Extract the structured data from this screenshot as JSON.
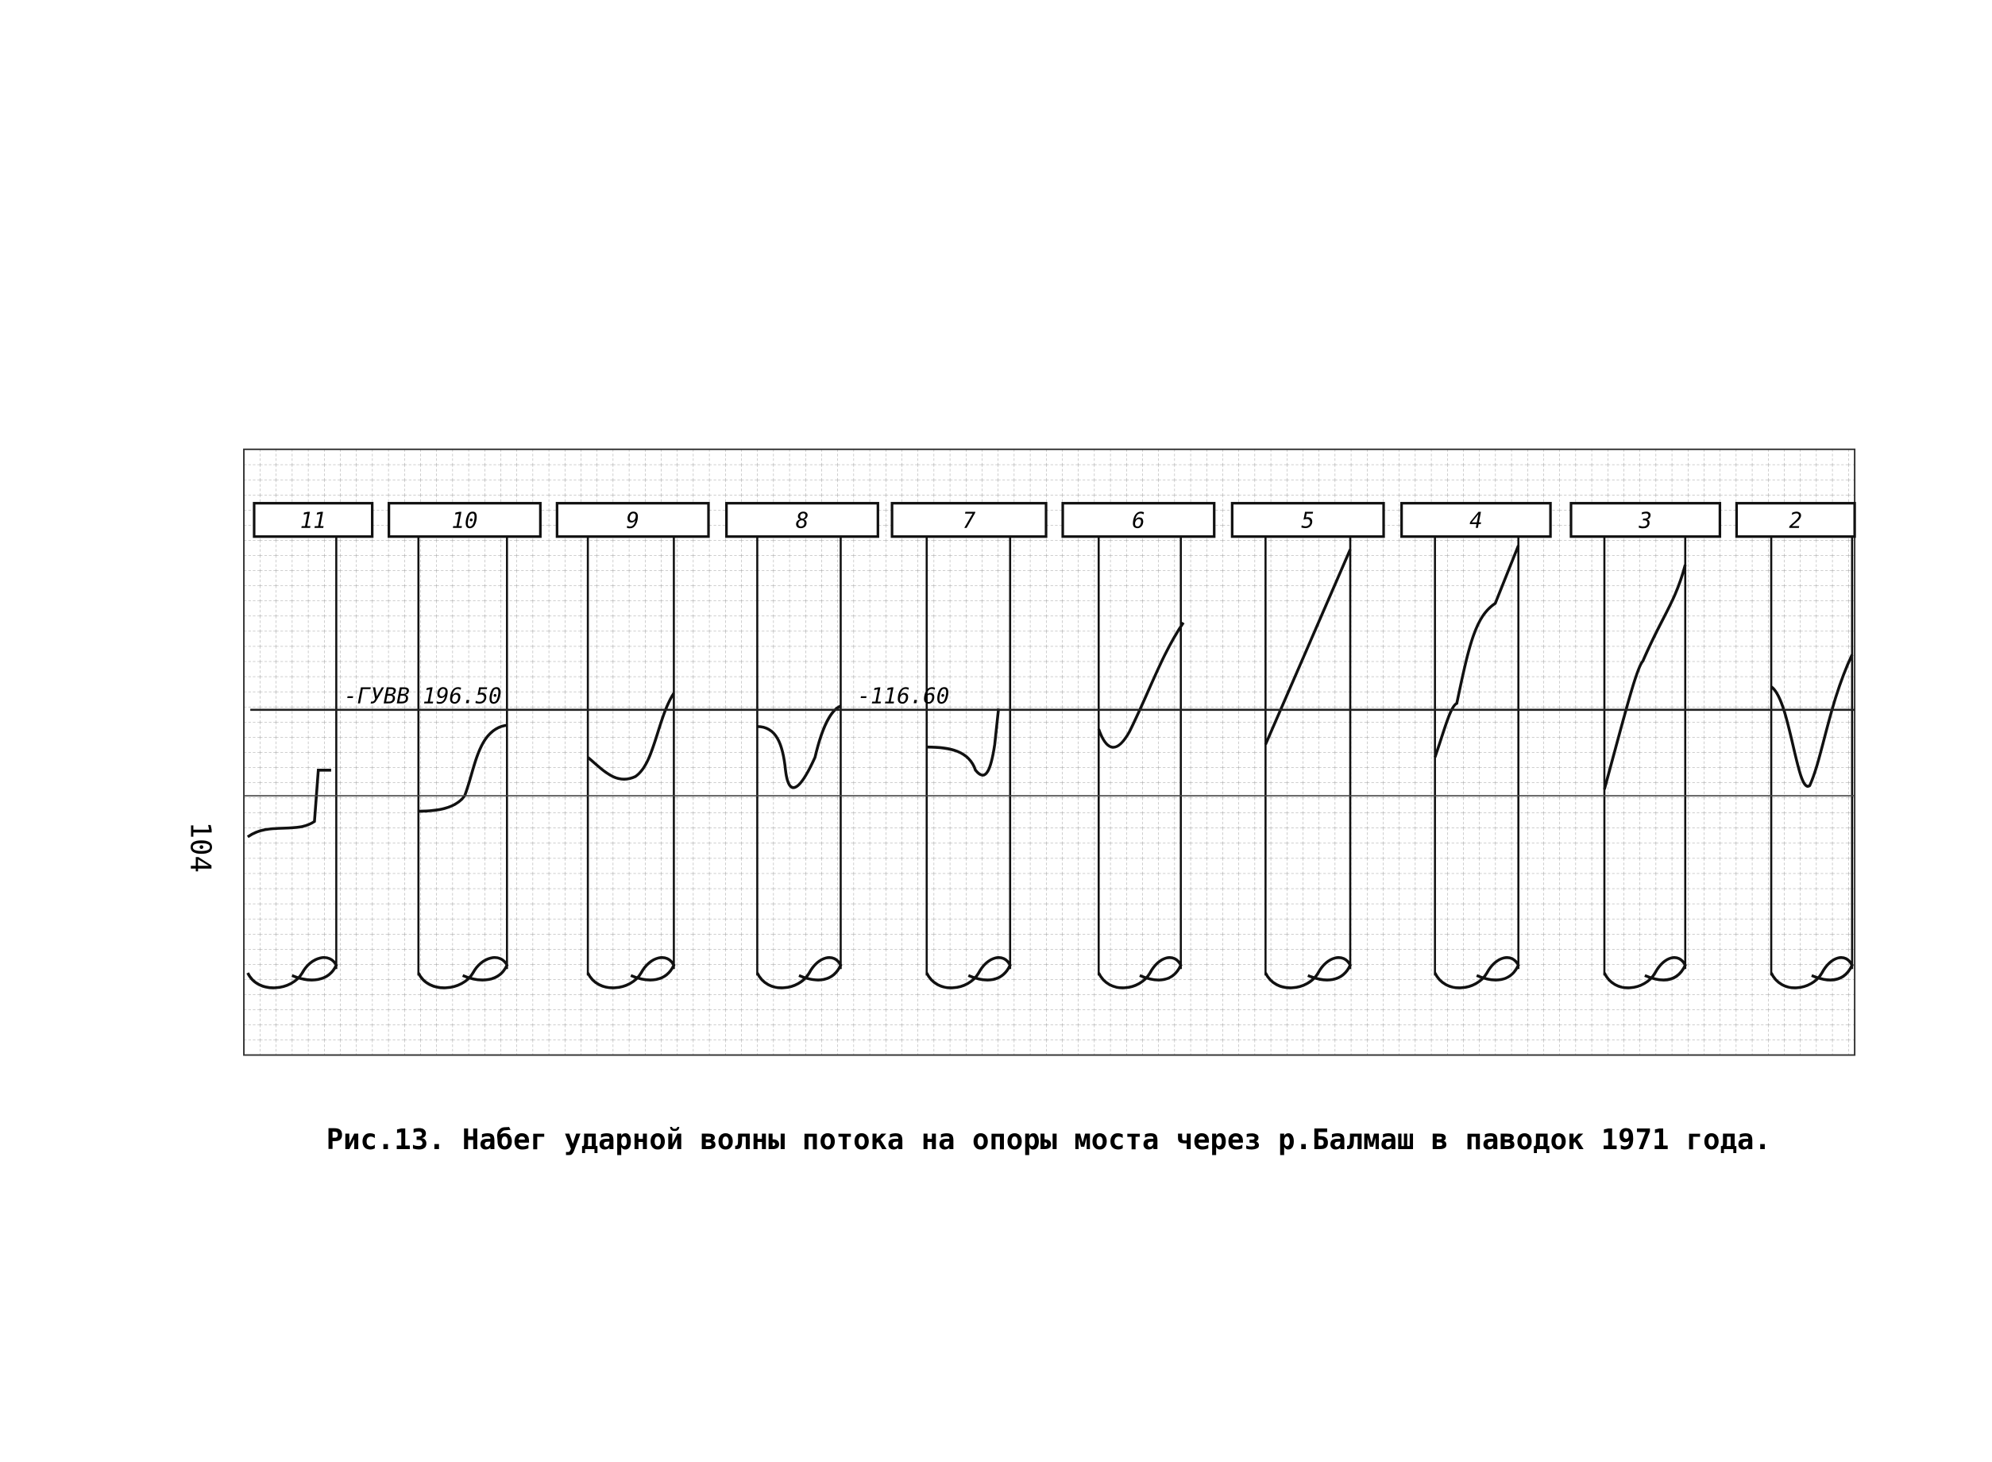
{
  "page_number": "104",
  "figure": {
    "channels": [
      "11",
      "10",
      "9",
      "8",
      "7",
      "6",
      "5",
      "4",
      "3",
      "2"
    ],
    "annotations": [
      "-ГУВВ 196.50",
      "-116.60"
    ]
  },
  "caption": "Рис.13. Набег ударной волны потока на опоры моста через р.Балмаш в паводок 1971 года."
}
